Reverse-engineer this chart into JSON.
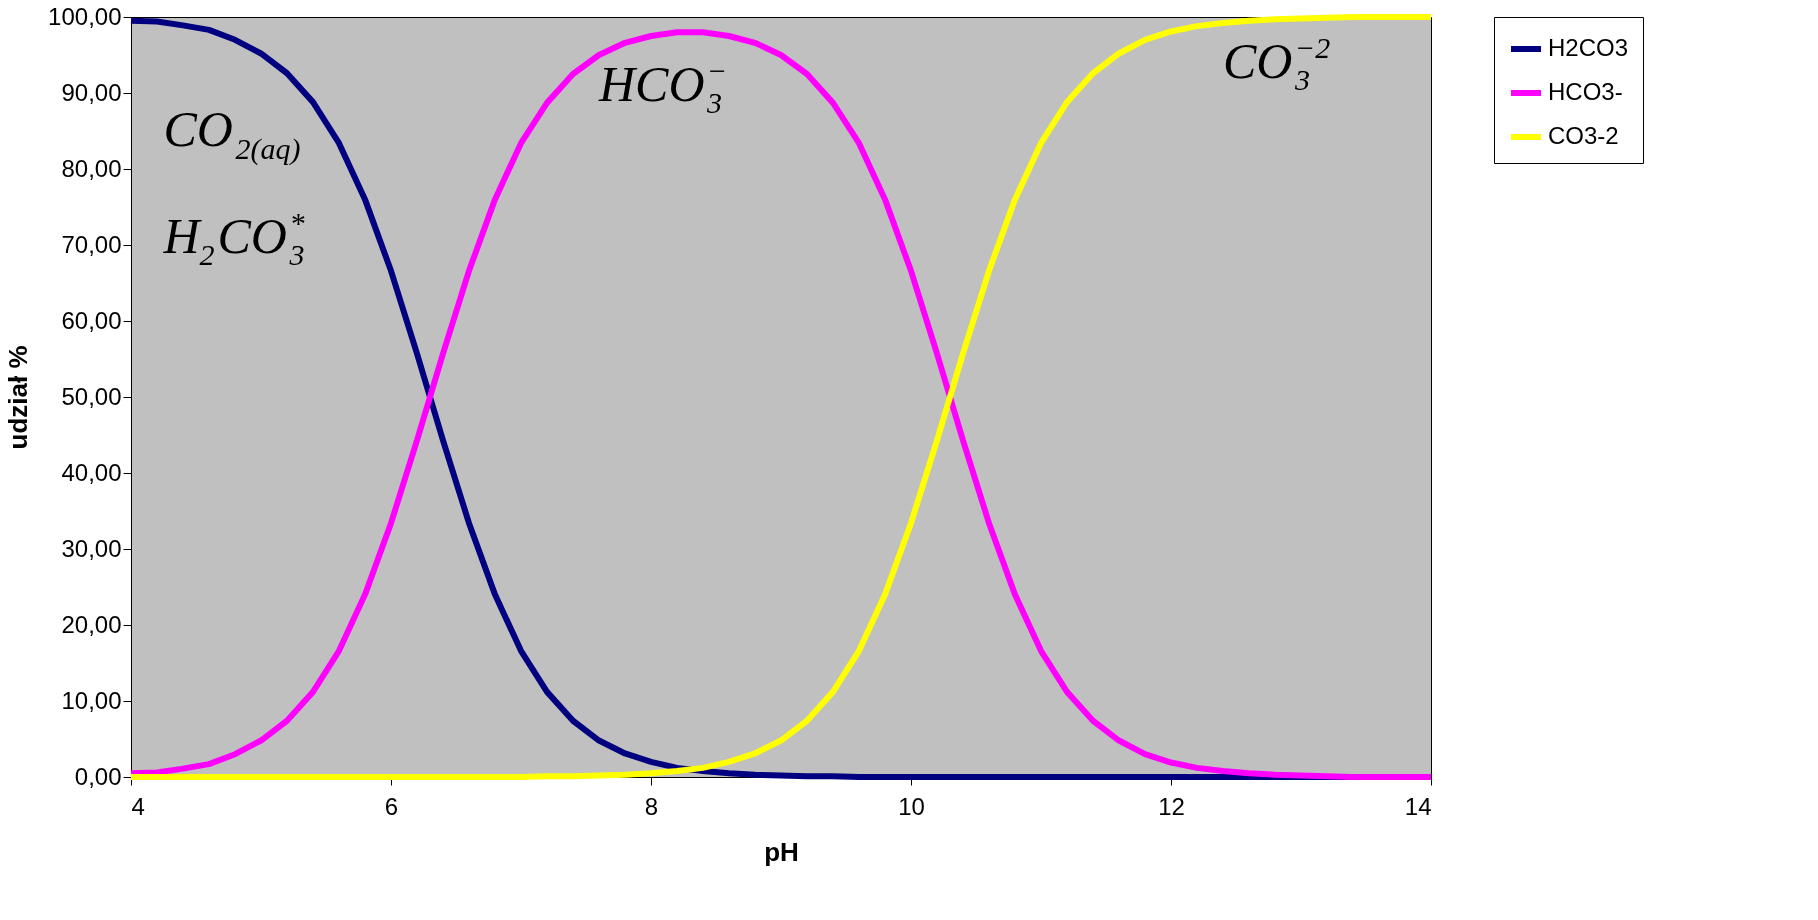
{
  "chart_data": {
    "type": "line",
    "xlabel": "pH",
    "ylabel": "udział %",
    "x": [
      4.0,
      4.2,
      4.4,
      4.6,
      4.8,
      5.0,
      5.2,
      5.4,
      5.6,
      5.8,
      6.0,
      6.2,
      6.4,
      6.6,
      6.8,
      7.0,
      7.2,
      7.4,
      7.6,
      7.8,
      8.0,
      8.2,
      8.4,
      8.6,
      8.8,
      9.0,
      9.2,
      9.4,
      9.6,
      9.8,
      10.0,
      10.2,
      10.4,
      10.6,
      10.8,
      11.0,
      11.2,
      11.4,
      11.6,
      11.8,
      12.0,
      12.2,
      12.4,
      12.6,
      12.8,
      13.0,
      13.2,
      13.4,
      13.6,
      13.8,
      14.0
    ],
    "series": [
      {
        "name": "H2CO3",
        "color": "#000080",
        "values": [
          99.5,
          99.4,
          98.9,
          98.3,
          97.0,
          95.2,
          92.6,
          88.8,
          83.4,
          76.0,
          66.6,
          55.7,
          44.3,
          33.4,
          24.0,
          16.6,
          11.2,
          7.4,
          4.8,
          3.1,
          2.0,
          1.2,
          0.8,
          0.5,
          0.3,
          0.2,
          0.1,
          0.1,
          0,
          0,
          0,
          0,
          0,
          0,
          0,
          0,
          0,
          0,
          0,
          0,
          0,
          0,
          0,
          0,
          0,
          0,
          0,
          0,
          null,
          null,
          null
        ]
      },
      {
        "name": "HCO3-",
        "color": "#ff00ff",
        "values": [
          0.5,
          0.6,
          1.1,
          1.7,
          3.0,
          4.8,
          7.4,
          11.2,
          16.6,
          24.0,
          33.4,
          44.3,
          55.7,
          66.6,
          76.0,
          83.4,
          88.7,
          92.5,
          95.0,
          96.6,
          97.5,
          98.0,
          98.0,
          97.5,
          96.6,
          95.0,
          92.5,
          88.7,
          83.4,
          76.0,
          66.6,
          55.7,
          44.3,
          33.4,
          24.0,
          16.6,
          11.2,
          7.4,
          4.8,
          3.0,
          1.9,
          1.2,
          0.8,
          0.5,
          0.3,
          0.2,
          0.1,
          0,
          0,
          0,
          0
        ]
      },
      {
        "name": "CO3-2",
        "color": "#ffff00",
        "values": [
          0,
          0,
          0,
          0,
          0,
          0,
          0,
          0,
          0,
          0,
          0,
          0,
          0,
          0,
          0,
          0,
          0.1,
          0.1,
          0.2,
          0.3,
          0.5,
          0.8,
          1.2,
          2.0,
          3.1,
          4.8,
          7.4,
          11.2,
          16.6,
          24.0,
          33.4,
          44.3,
          55.7,
          66.6,
          76.0,
          83.4,
          88.8,
          92.6,
          95.2,
          97.0,
          98.1,
          98.8,
          99.2,
          99.5,
          99.7,
          99.8,
          99.9,
          100,
          100,
          100,
          100
        ]
      }
    ],
    "xlim": [
      4,
      14
    ],
    "xticks": [
      4,
      6,
      8,
      10,
      12,
      14
    ],
    "ylim": [
      0,
      100
    ],
    "yticks": [
      {
        "value": 0,
        "label": "0,00"
      },
      {
        "value": 10,
        "label": "10,00"
      },
      {
        "value": 20,
        "label": "20,00"
      },
      {
        "value": 30,
        "label": "30,00"
      },
      {
        "value": 40,
        "label": "40,00"
      },
      {
        "value": 50,
        "label": "50,00"
      },
      {
        "value": 60,
        "label": "60,00"
      },
      {
        "value": 70,
        "label": "70,00"
      },
      {
        "value": 80,
        "label": "80,00"
      },
      {
        "value": 90,
        "label": "90,00"
      },
      {
        "value": 100,
        "label": "100,00"
      }
    ],
    "annotations": [
      "CO$_{2(aq)}$",
      "H$_{2}$CO$_{3}$$^{*}$",
      "HCO$_{3}$$^{−}$",
      "CO$_{3}$$^{−2}$"
    ],
    "grid": false,
    "legend": "right",
    "line_style": "solid",
    "marker": "none"
  }
}
